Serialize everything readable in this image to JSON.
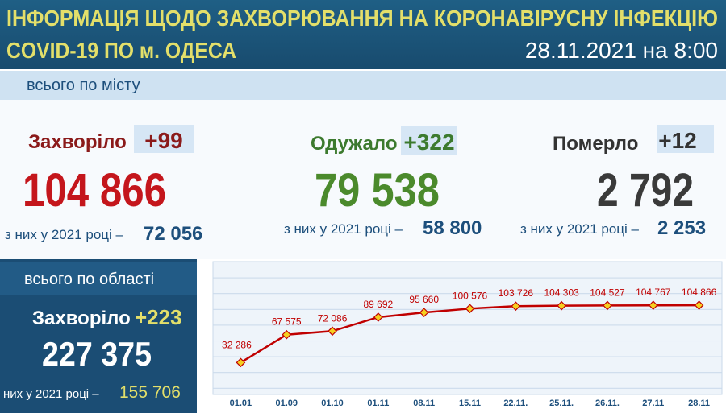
{
  "header": {
    "title_line1": "ІНФОРМАЦІЯ ЩОДО ЗАХВОРЮВАННЯ НА КОРОНАВІРУСНУ ІНФЕКЦІЮ",
    "title_line2": "COVID-19 ПО м. ОДЕСА",
    "date": "28.11.2021 на 8:00"
  },
  "city": {
    "label": "всього по місту",
    "stats": [
      {
        "name": "Захворіло",
        "delta": "+99",
        "total": "104 866",
        "year_label": "з них у 2021 році –",
        "year_value": "72 056"
      },
      {
        "name": "Одужало",
        "delta": "+322",
        "total": "79 538",
        "year_label": "з них у 2021 році –",
        "year_value": "58 800"
      },
      {
        "name": "Померло",
        "delta": "+12",
        "total": "2 792",
        "year_label": "з них у 2021 році –",
        "year_value": "2 253"
      }
    ]
  },
  "region": {
    "label": "всього по області",
    "name": "Захворіло",
    "delta": "+223",
    "total": "227 375",
    "year_label": "них у 2021 році –",
    "year_value": "155 706"
  },
  "chart_data": {
    "type": "line",
    "categories": [
      "01.01",
      "01.09",
      "01.10",
      "01.11",
      "08.11",
      "15.11",
      "22.11.",
      "25.11.",
      "26.11.",
      "27.11",
      "28.11"
    ],
    "values": [
      32286,
      67575,
      72086,
      89692,
      95660,
      100576,
      103726,
      104303,
      104527,
      104767,
      104866
    ],
    "value_labels": [
      "32 286",
      "67 575",
      "72 086",
      "89 692",
      "95 660",
      "100 576",
      "103 726",
      "104 303",
      "104 527",
      "104 767",
      "104 866"
    ],
    "color": "#c00000",
    "marker_color": "#f5d020",
    "ylim": [
      0,
      160000
    ]
  }
}
